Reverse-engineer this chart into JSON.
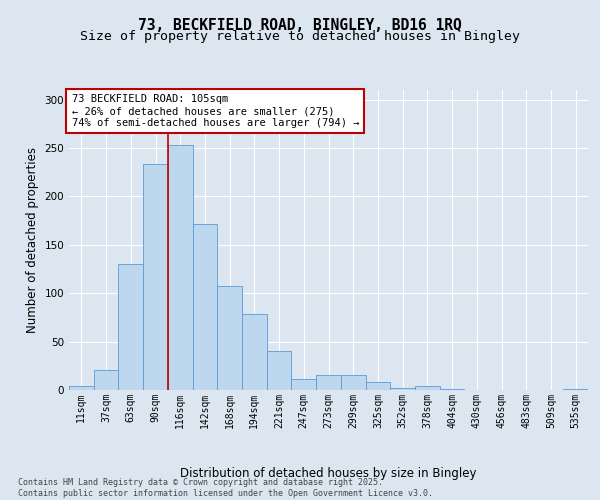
{
  "title_line1": "73, BECKFIELD ROAD, BINGLEY, BD16 1RQ",
  "title_line2": "Size of property relative to detached houses in Bingley",
  "xlabel": "Distribution of detached houses by size in Bingley",
  "ylabel": "Number of detached properties",
  "bar_color": "#bdd7ee",
  "bar_edge_color": "#5b9bd5",
  "background_color": "#dce6f1",
  "plot_bg_color": "#dce6f1",
  "grid_color": "#ffffff",
  "categories": [
    "11sqm",
    "37sqm",
    "63sqm",
    "90sqm",
    "116sqm",
    "142sqm",
    "168sqm",
    "194sqm",
    "221sqm",
    "247sqm",
    "273sqm",
    "299sqm",
    "325sqm",
    "352sqm",
    "378sqm",
    "404sqm",
    "430sqm",
    "456sqm",
    "483sqm",
    "509sqm",
    "535sqm"
  ],
  "values": [
    4,
    21,
    130,
    234,
    253,
    172,
    107,
    79,
    40,
    11,
    16,
    16,
    8,
    2,
    4,
    1,
    0,
    0,
    0,
    0,
    1
  ],
  "ylim": [
    0,
    310
  ],
  "yticks": [
    0,
    50,
    100,
    150,
    200,
    250,
    300
  ],
  "annotation_text": "73 BECKFIELD ROAD: 105sqm\n← 26% of detached houses are smaller (275)\n74% of semi-detached houses are larger (794) →",
  "vline_x": 3.5,
  "vline_color": "#c00000",
  "annotation_box_color": "#ffffff",
  "annotation_box_edge": "#c00000",
  "footer_text": "Contains HM Land Registry data © Crown copyright and database right 2025.\nContains public sector information licensed under the Open Government Licence v3.0.",
  "title_fontsize": 10.5,
  "subtitle_fontsize": 9.5,
  "tick_fontsize": 7,
  "label_fontsize": 8.5,
  "annotation_fontsize": 7.5
}
